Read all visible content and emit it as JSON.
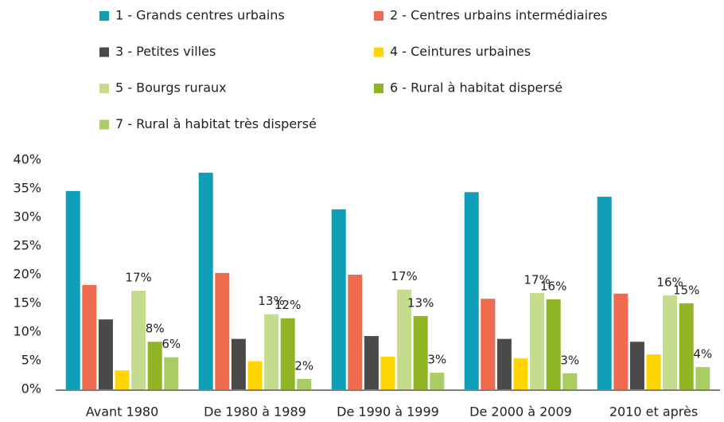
{
  "chart_data": {
    "type": "bar",
    "categories": [
      "Avant 1980",
      "De 1980 à 1989",
      "De 1990 à 1999",
      "De 2000 à 2009",
      "2010 et après"
    ],
    "series": [
      {
        "name": "1 - Grands centres urbains",
        "color": "#0e9eb5",
        "values": [
          34.6,
          37.8,
          31.4,
          34.4,
          33.6
        ]
      },
      {
        "name": "2 - Centres urbains intermédiaires",
        "color": "#ef6b4f",
        "values": [
          18.2,
          20.3,
          20.0,
          15.8,
          16.7
        ]
      },
      {
        "name": "3 - Petites villes",
        "color": "#4a4a4a",
        "values": [
          12.2,
          8.8,
          9.3,
          8.8,
          8.3
        ]
      },
      {
        "name": "4 - Ceintures urbaines",
        "color": "#ffd500",
        "values": [
          3.3,
          4.9,
          5.7,
          5.4,
          6.1
        ]
      },
      {
        "name": "5 - Bourgs ruraux",
        "color": "#c5dc8f",
        "values": [
          17.2,
          13.1,
          17.4,
          16.8,
          16.4
        ],
        "value_labels": [
          "17%",
          "13%",
          "17%",
          "17%",
          "16%"
        ]
      },
      {
        "name": "6 - Rural à habitat dispersé",
        "color": "#8fb525",
        "values": [
          8.3,
          12.4,
          12.8,
          15.7,
          15.0
        ],
        "value_labels": [
          "8%",
          "12%",
          "13%",
          "16%",
          "15%"
        ]
      },
      {
        "name": "7 - Rural à habitat très dispersé",
        "color": "#a9cc63",
        "values": [
          5.6,
          1.8,
          2.9,
          2.8,
          3.9
        ],
        "value_labels": [
          "6%",
          "2%",
          "3%",
          "3%",
          "4%"
        ]
      }
    ],
    "ylim": [
      0,
      40
    ],
    "yticks": [
      {
        "value": 0,
        "label": "0%"
      },
      {
        "value": 5,
        "label": "5%"
      },
      {
        "value": 10,
        "label": "10%"
      },
      {
        "value": 15,
        "label": "15%"
      },
      {
        "value": 20,
        "label": "20%"
      },
      {
        "value": 25,
        "label": "25%"
      },
      {
        "value": 30,
        "label": "30%"
      },
      {
        "value": 35,
        "label": "35%"
      },
      {
        "value": 40,
        "label": "40%"
      }
    ],
    "grid": false
  }
}
